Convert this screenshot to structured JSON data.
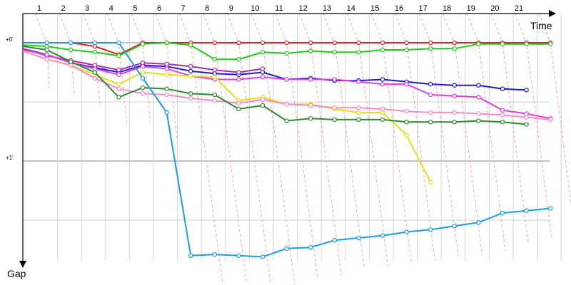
{
  "chart_data": {
    "type": "line",
    "x_axis_title": "Time",
    "y_axis_title": "Gap",
    "y_tick_labels": [
      {
        "value": 0,
        "label": "+0'"
      },
      {
        "value": 1,
        "label": "+1'"
      }
    ],
    "x_lap_labels": [
      "1",
      "2",
      "3",
      "4",
      "5",
      "6",
      "7",
      "8",
      "9",
      "10",
      "11",
      "12",
      "13",
      "14",
      "15",
      "16",
      "17",
      "18",
      "19",
      "20",
      "21"
    ],
    "grid": true,
    "y_range": [
      -0.19,
      1.9
    ],
    "series": [
      {
        "color": "#e8211c",
        "points": [
          [
            0,
            0
          ],
          [
            1,
            0
          ],
          [
            2,
            0
          ],
          [
            3,
            0.03
          ],
          [
            4,
            0.1
          ],
          [
            5,
            0
          ],
          [
            6,
            0
          ],
          [
            7,
            0
          ],
          [
            8,
            0
          ],
          [
            9,
            0
          ],
          [
            10,
            0
          ],
          [
            11,
            0
          ],
          [
            12,
            0
          ],
          [
            13,
            0
          ],
          [
            14,
            0
          ],
          [
            15,
            0
          ],
          [
            16,
            0
          ],
          [
            17,
            0
          ],
          [
            18,
            0
          ],
          [
            19,
            0
          ],
          [
            20,
            0
          ],
          [
            21,
            0
          ],
          [
            22,
            0
          ]
        ]
      },
      {
        "color": "#22c81c",
        "points": [
          [
            0,
            0.02
          ],
          [
            1,
            0.03
          ],
          [
            2,
            0.06
          ],
          [
            3,
            0.08
          ],
          [
            4,
            0.11
          ],
          [
            5,
            0.01
          ],
          [
            6,
            0
          ],
          [
            7,
            0.02
          ],
          [
            8,
            0.14
          ],
          [
            9,
            0.14
          ],
          [
            10,
            0.08
          ],
          [
            11,
            0.09
          ],
          [
            12,
            0.07
          ],
          [
            13,
            0.08
          ],
          [
            14,
            0.08
          ],
          [
            15,
            0.06
          ],
          [
            16,
            0.06
          ],
          [
            17,
            0.05
          ],
          [
            18,
            0.05
          ],
          [
            19,
            0.01
          ],
          [
            20,
            0.01
          ],
          [
            21,
            0.01
          ],
          [
            22,
            0.01
          ]
        ]
      },
      {
        "color": "#1c1ccc",
        "points": [
          [
            0,
            0.05
          ],
          [
            1,
            0.1
          ],
          [
            2,
            0.17
          ],
          [
            3,
            0.21
          ],
          [
            4,
            0.25
          ],
          [
            5,
            0.19
          ],
          [
            6,
            0.2
          ],
          [
            7,
            0.24
          ],
          [
            8,
            0.26
          ],
          [
            9,
            0.27
          ],
          [
            10,
            0.25
          ],
          [
            11,
            0.31
          ],
          [
            12,
            0.3
          ],
          [
            13,
            0.32
          ],
          [
            14,
            0.32
          ],
          [
            15,
            0.31
          ],
          [
            16,
            0.33
          ],
          [
            17,
            0.35
          ],
          [
            18,
            0.36
          ],
          [
            19,
            0.36
          ],
          [
            20,
            0.39
          ],
          [
            21,
            0.4
          ]
        ]
      },
      {
        "color": "#aa2ea8",
        "points": [
          [
            0,
            0.05
          ],
          [
            1,
            0.11
          ],
          [
            2,
            0.15
          ],
          [
            3,
            0.19
          ],
          [
            4,
            0.23
          ],
          [
            5,
            0.17
          ],
          [
            6,
            0.18
          ],
          [
            7,
            0.2
          ],
          [
            8,
            0.23
          ],
          [
            9,
            0.25
          ],
          [
            10,
            0.22
          ]
        ]
      },
      {
        "color": "#e23ce6",
        "points": [
          [
            0,
            0.06
          ],
          [
            1,
            0.1
          ],
          [
            2,
            0.17
          ],
          [
            3,
            0.22
          ],
          [
            4,
            0.27
          ],
          [
            5,
            0.2
          ],
          [
            6,
            0.22
          ],
          [
            7,
            0.28
          ],
          [
            8,
            0.31
          ],
          [
            9,
            0.31
          ],
          [
            10,
            0.29
          ],
          [
            11,
            0.31
          ],
          [
            12,
            0.31
          ],
          [
            13,
            0.31
          ],
          [
            14,
            0.33
          ],
          [
            15,
            0.35
          ],
          [
            16,
            0.35
          ],
          [
            17,
            0.44
          ],
          [
            18,
            0.45
          ],
          [
            19,
            0.46
          ],
          [
            20,
            0.57
          ],
          [
            21,
            0.6
          ],
          [
            22,
            0.64
          ]
        ]
      },
      {
        "color": "#e0e018",
        "points": [
          [
            0,
            0.07
          ],
          [
            1,
            0.14
          ],
          [
            2,
            0.19
          ],
          [
            3,
            0.27
          ],
          [
            4,
            0.35
          ],
          [
            5,
            0.25
          ],
          [
            6,
            0.27
          ],
          [
            7,
            0.28
          ],
          [
            8,
            0.29
          ],
          [
            9,
            0.49
          ],
          [
            10,
            0.46
          ],
          [
            11,
            0.52
          ],
          [
            12,
            0.52
          ],
          [
            13,
            0.56
          ],
          [
            14,
            0.59
          ],
          [
            15,
            0.59
          ],
          [
            16,
            0.78
          ],
          [
            17,
            1.18
          ]
        ]
      },
      {
        "color": "#f58cc8",
        "points": [
          [
            0,
            0.07
          ],
          [
            1,
            0.14
          ],
          [
            2,
            0.19
          ],
          [
            3,
            0.3
          ],
          [
            4,
            0.39
          ],
          [
            5,
            0.43
          ],
          [
            6,
            0.44
          ],
          [
            7,
            0.47
          ],
          [
            8,
            0.49
          ],
          [
            9,
            0.51
          ],
          [
            10,
            0.48
          ],
          [
            11,
            0.52
          ],
          [
            12,
            0.53
          ],
          [
            13,
            0.55
          ],
          [
            14,
            0.55
          ],
          [
            15,
            0.56
          ],
          [
            16,
            0.58
          ],
          [
            17,
            0.59
          ],
          [
            18,
            0.59
          ],
          [
            19,
            0.6
          ],
          [
            20,
            0.61
          ],
          [
            21,
            0.63
          ],
          [
            22,
            0.65
          ]
        ]
      },
      {
        "color": "#2a8c2a",
        "points": [
          [
            0,
            0.03
          ],
          [
            1,
            0.06
          ],
          [
            2,
            0.16
          ],
          [
            3,
            0.25
          ],
          [
            4,
            0.46
          ],
          [
            5,
            0.38
          ],
          [
            6,
            0.39
          ],
          [
            7,
            0.43
          ],
          [
            8,
            0.44
          ],
          [
            9,
            0.56
          ],
          [
            10,
            0.53
          ],
          [
            11,
            0.66
          ],
          [
            12,
            0.64
          ],
          [
            13,
            0.65
          ],
          [
            14,
            0.65
          ],
          [
            15,
            0.65
          ],
          [
            16,
            0.67
          ],
          [
            17,
            0.67
          ],
          [
            18,
            0.67
          ],
          [
            19,
            0.66
          ],
          [
            20,
            0.67
          ],
          [
            21,
            0.69
          ]
        ]
      },
      {
        "color": "#1c9be6",
        "points": [
          [
            0,
            0
          ],
          [
            1,
            0
          ],
          [
            2,
            0
          ],
          [
            3,
            0
          ],
          [
            4,
            0
          ],
          [
            5,
            0.3
          ],
          [
            6,
            0.59
          ],
          [
            7,
            1.8
          ],
          [
            8,
            1.79
          ],
          [
            9,
            1.8
          ],
          [
            10,
            1.81
          ],
          [
            11,
            1.74
          ],
          [
            12,
            1.73
          ],
          [
            13,
            1.67
          ],
          [
            14,
            1.65
          ],
          [
            15,
            1.63
          ],
          [
            16,
            1.6
          ],
          [
            17,
            1.58
          ],
          [
            18,
            1.55
          ],
          [
            19,
            1.52
          ],
          [
            20,
            1.44
          ],
          [
            21,
            1.42
          ],
          [
            22,
            1.4
          ]
        ]
      }
    ]
  }
}
